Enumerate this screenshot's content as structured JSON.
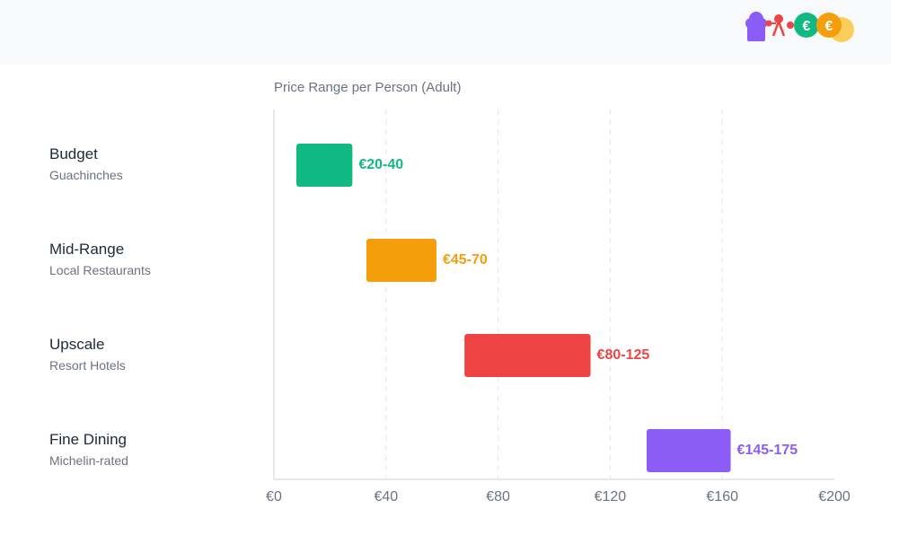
{
  "header": {
    "logo_icon": "chef-cutlery-euro-logo",
    "logo_euro_1": "€",
    "logo_euro_2": "€"
  },
  "chart_data": {
    "type": "bar",
    "orientation": "horizontal",
    "title": "Price Range per Person (Adult)",
    "categories": [
      {
        "name": "Budget",
        "subtitle": "Guachinches",
        "range": [
          20,
          40
        ],
        "label": "€20-40",
        "color": "#10b981"
      },
      {
        "name": "Mid-Range",
        "subtitle": "Local Restaurants",
        "range": [
          45,
          70
        ],
        "label": "€45-70",
        "color": "#f59e0b"
      },
      {
        "name": "Upscale",
        "subtitle": "Resort Hotels",
        "range": [
          80,
          125
        ],
        "label": "€80-125",
        "color": "#ef4444"
      },
      {
        "name": "Fine Dining",
        "subtitle": "Michelin-rated",
        "range": [
          145,
          175
        ],
        "label": "€145-175",
        "color": "#8b5cf6"
      }
    ],
    "xlim": [
      0,
      200
    ],
    "xticks": [
      {
        "value": 0,
        "label": "€0"
      },
      {
        "value": 40,
        "label": "€40"
      },
      {
        "value": 80,
        "label": "€80"
      },
      {
        "value": 120,
        "label": "€120"
      },
      {
        "value": 160,
        "label": "€160"
      },
      {
        "value": 200,
        "label": "€200"
      }
    ],
    "grid": "vertical-dashed"
  }
}
